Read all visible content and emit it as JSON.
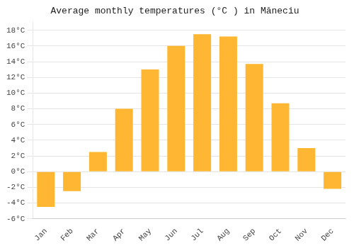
{
  "chart_data": {
    "type": "bar",
    "title": "Average monthly temperatures (°C ) in Măneciu",
    "categories": [
      "Jan",
      "Feb",
      "Mar",
      "Apr",
      "May",
      "Jun",
      "Jul",
      "Aug",
      "Sep",
      "Oct",
      "Nov",
      "Dec"
    ],
    "values": [
      -4.5,
      -2.5,
      2.5,
      8.0,
      13.0,
      16.0,
      17.5,
      17.2,
      13.7,
      8.7,
      3.0,
      -2.2
    ],
    "color": "#FFB733",
    "ylim": [
      -6,
      19
    ],
    "yticks": [
      {
        "value": -6,
        "label": "-6°C"
      },
      {
        "value": -4,
        "label": "-4°C"
      },
      {
        "value": -2,
        "label": "-2°C"
      },
      {
        "value": 0,
        "label": "0°C"
      },
      {
        "value": 2,
        "label": "2°C"
      },
      {
        "value": 4,
        "label": "4°C"
      },
      {
        "value": 6,
        "label": "6°C"
      },
      {
        "value": 8,
        "label": "8°C"
      },
      {
        "value": 10,
        "label": "10°C"
      },
      {
        "value": 12,
        "label": "12°C"
      },
      {
        "value": 14,
        "label": "14°C"
      },
      {
        "value": 16,
        "label": "16°C"
      },
      {
        "value": 18,
        "label": "18°C"
      }
    ],
    "grid": true
  }
}
